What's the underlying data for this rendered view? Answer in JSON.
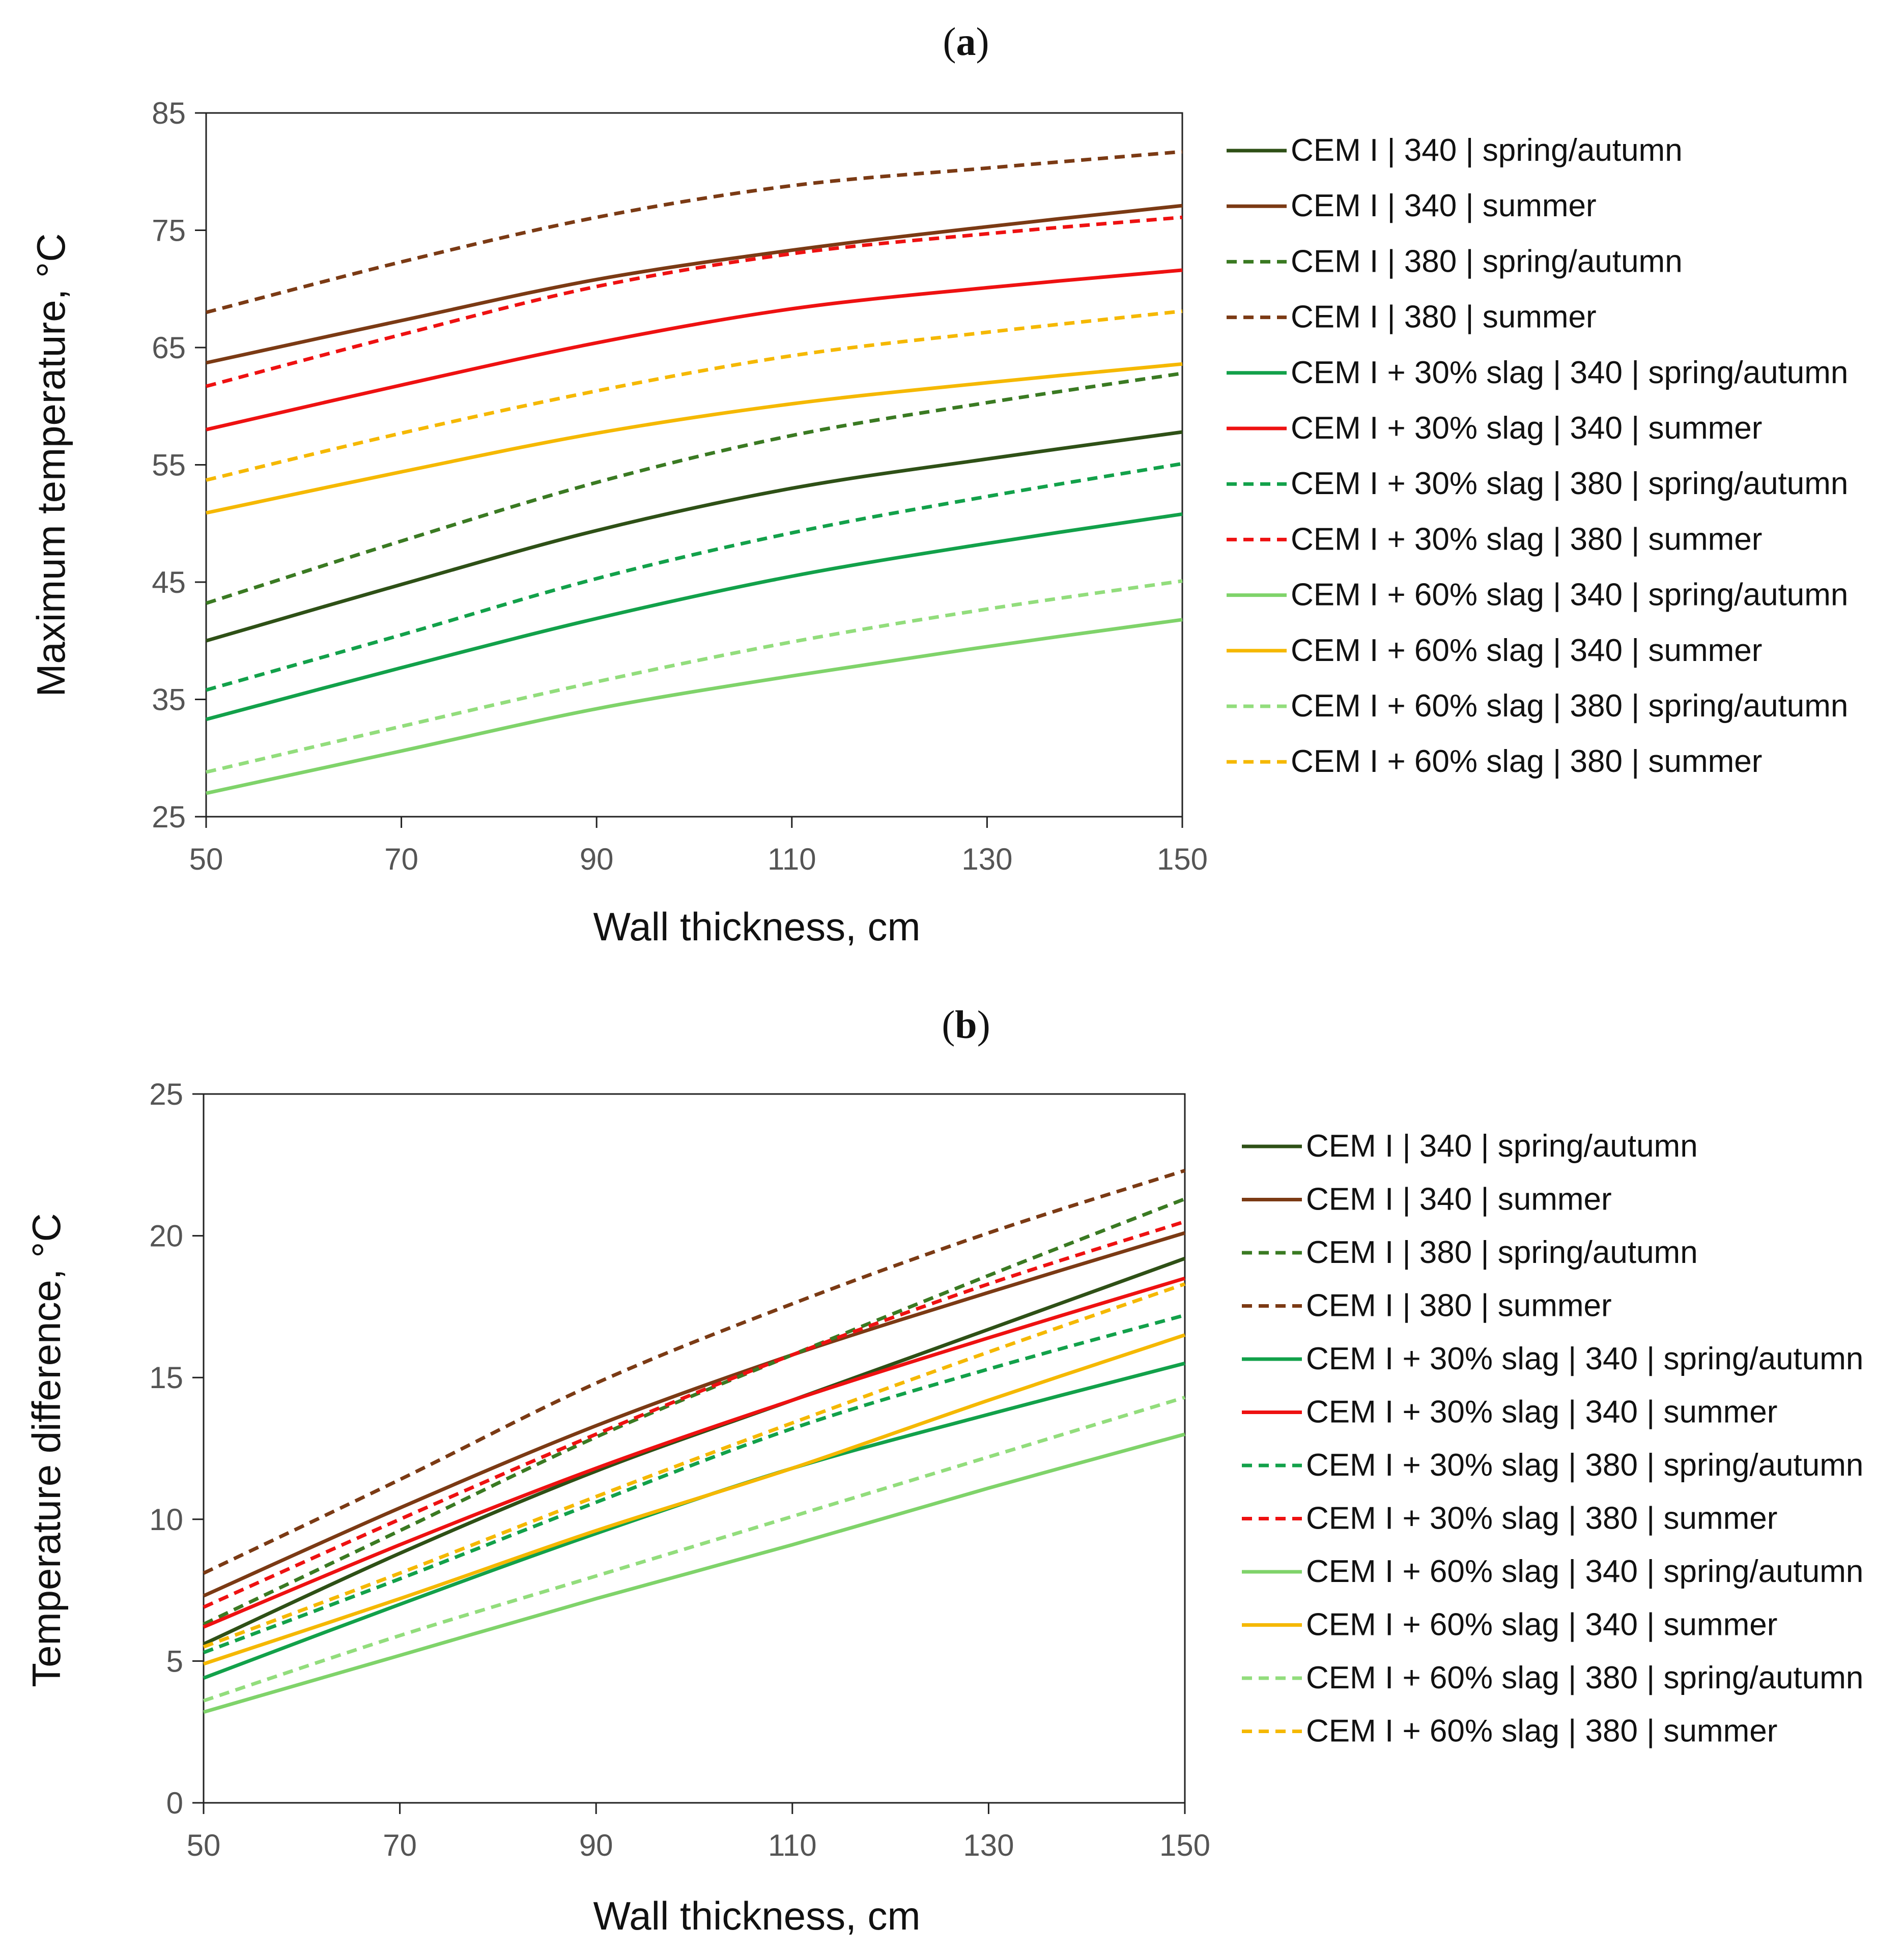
{
  "chart_data": [
    {
      "type": "line",
      "panel_label": "a",
      "title": "",
      "xlabel": "Wall thickness, cm",
      "ylabel": "Maximum temperature, °C",
      "xlim": [
        50,
        150
      ],
      "ylim": [
        25,
        85
      ],
      "xticks": [
        50,
        70,
        90,
        110,
        130,
        150
      ],
      "yticks": [
        25,
        35,
        45,
        55,
        65,
        75,
        85
      ],
      "grid": false,
      "legend_position": "right",
      "x": [
        50,
        70,
        90,
        110,
        130,
        150
      ],
      "series": [
        {
          "name": "CEM I | 340 | spring/autumn",
          "color": "#2e5016",
          "dash": "solid",
          "values": [
            40.0,
            44.8,
            49.4,
            53.0,
            55.5,
            57.8
          ]
        },
        {
          "name": "CEM I | 340 | summer",
          "color": "#7b3a14",
          "dash": "solid",
          "values": [
            63.7,
            67.3,
            70.8,
            73.3,
            75.3,
            77.1
          ]
        },
        {
          "name": "CEM I | 380 | spring/autumn",
          "color": "#3a7a22",
          "dash": "dashed",
          "values": [
            43.2,
            48.5,
            53.5,
            57.5,
            60.3,
            62.8
          ]
        },
        {
          "name": "CEM I | 380 | summer",
          "color": "#7b3a14",
          "dash": "dashed",
          "values": [
            68.0,
            72.3,
            76.1,
            78.8,
            80.3,
            81.7
          ]
        },
        {
          "name": "CEM I + 30% slag | 340 | spring/autumn",
          "color": "#12a14a",
          "dash": "solid",
          "values": [
            33.3,
            37.7,
            41.9,
            45.5,
            48.3,
            50.8
          ]
        },
        {
          "name": "CEM I + 30% slag | 340 | summer",
          "color": "#ee1111",
          "dash": "solid",
          "values": [
            58.0,
            61.8,
            65.4,
            68.3,
            70.1,
            71.6
          ]
        },
        {
          "name": "CEM I + 30% slag | 380 | spring/autumn",
          "color": "#12a14a",
          "dash": "dashed",
          "values": [
            35.8,
            40.5,
            45.3,
            49.2,
            52.3,
            55.1
          ]
        },
        {
          "name": "CEM I + 30% slag | 380 | summer",
          "color": "#ee1111",
          "dash": "dashed",
          "values": [
            61.7,
            66.1,
            70.2,
            73.0,
            74.7,
            76.1
          ]
        },
        {
          "name": "CEM I + 60% slag | 340 | spring/autumn",
          "color": "#7fd36a",
          "dash": "solid",
          "values": [
            27.0,
            30.6,
            34.2,
            37.0,
            39.5,
            41.8
          ]
        },
        {
          "name": "CEM I + 60% slag | 340 | summer",
          "color": "#f5b800",
          "dash": "solid",
          "values": [
            50.9,
            54.4,
            57.7,
            60.2,
            62.0,
            63.6
          ]
        },
        {
          "name": "CEM I + 60% slag | 380 | spring/autumn",
          "color": "#92dd7c",
          "dash": "dashed",
          "values": [
            28.8,
            32.7,
            36.5,
            39.9,
            42.7,
            45.1
          ]
        },
        {
          "name": "CEM I + 60% slag | 380 | summer",
          "color": "#f5b800",
          "dash": "dashed",
          "values": [
            53.7,
            57.7,
            61.3,
            64.3,
            66.3,
            68.1
          ]
        }
      ]
    },
    {
      "type": "line",
      "panel_label": "b",
      "title": "",
      "xlabel": "Wall thickness, cm",
      "ylabel": "Temperature difference, °C",
      "xlim": [
        50,
        150
      ],
      "ylim": [
        0,
        25
      ],
      "xticks": [
        50,
        70,
        90,
        110,
        130,
        150
      ],
      "yticks": [
        0,
        5,
        10,
        15,
        20,
        25
      ],
      "grid": false,
      "legend_position": "right",
      "x": [
        50,
        70,
        90,
        110,
        130,
        150
      ],
      "series": [
        {
          "name": "CEM I | 340 | spring/autumn",
          "color": "#2e5016",
          "dash": "solid",
          "values": [
            5.6,
            8.8,
            11.7,
            14.2,
            16.7,
            19.2
          ]
        },
        {
          "name": "CEM I | 340 | summer",
          "color": "#7b3a14",
          "dash": "solid",
          "values": [
            7.3,
            10.4,
            13.3,
            15.8,
            18.0,
            20.1
          ]
        },
        {
          "name": "CEM I | 380 | spring/autumn",
          "color": "#3a7a22",
          "dash": "dashed",
          "values": [
            6.3,
            9.6,
            12.9,
            15.8,
            18.6,
            21.3
          ]
        },
        {
          "name": "CEM I | 380 | summer",
          "color": "#7b3a14",
          "dash": "dashed",
          "values": [
            8.1,
            11.4,
            14.8,
            17.6,
            20.1,
            22.3
          ]
        },
        {
          "name": "CEM I + 30% slag | 340 | spring/autumn",
          "color": "#12a14a",
          "dash": "solid",
          "values": [
            4.4,
            7.0,
            9.5,
            11.8,
            13.7,
            15.5
          ]
        },
        {
          "name": "CEM I + 30% slag | 340 | summer",
          "color": "#ee1111",
          "dash": "solid",
          "values": [
            6.2,
            9.1,
            11.8,
            14.2,
            16.4,
            18.5
          ]
        },
        {
          "name": "CEM I + 30% slag | 380 | spring/autumn",
          "color": "#12a14a",
          "dash": "dashed",
          "values": [
            5.3,
            7.9,
            10.6,
            13.2,
            15.3,
            17.2
          ]
        },
        {
          "name": "CEM I + 30% slag | 380 | summer",
          "color": "#ee1111",
          "dash": "dashed",
          "values": [
            6.9,
            10.0,
            13.0,
            15.8,
            18.3,
            20.5
          ]
        },
        {
          "name": "CEM I + 60% slag | 340 | spring/autumn",
          "color": "#7fd36a",
          "dash": "solid",
          "values": [
            3.2,
            5.2,
            7.2,
            9.1,
            11.1,
            13.0
          ]
        },
        {
          "name": "CEM I + 60% slag | 340 | summer",
          "color": "#f5b800",
          "dash": "solid",
          "values": [
            4.9,
            7.2,
            9.6,
            11.8,
            14.2,
            16.5
          ]
        },
        {
          "name": "CEM I + 60% slag | 380 | spring/autumn",
          "color": "#92dd7c",
          "dash": "dashed",
          "values": [
            3.6,
            5.9,
            8.0,
            10.1,
            12.2,
            14.3
          ]
        },
        {
          "name": "CEM I + 60% slag | 380 | summer",
          "color": "#f5b800",
          "dash": "dashed",
          "values": [
            5.5,
            8.1,
            10.8,
            13.4,
            15.9,
            18.3
          ]
        }
      ]
    }
  ]
}
